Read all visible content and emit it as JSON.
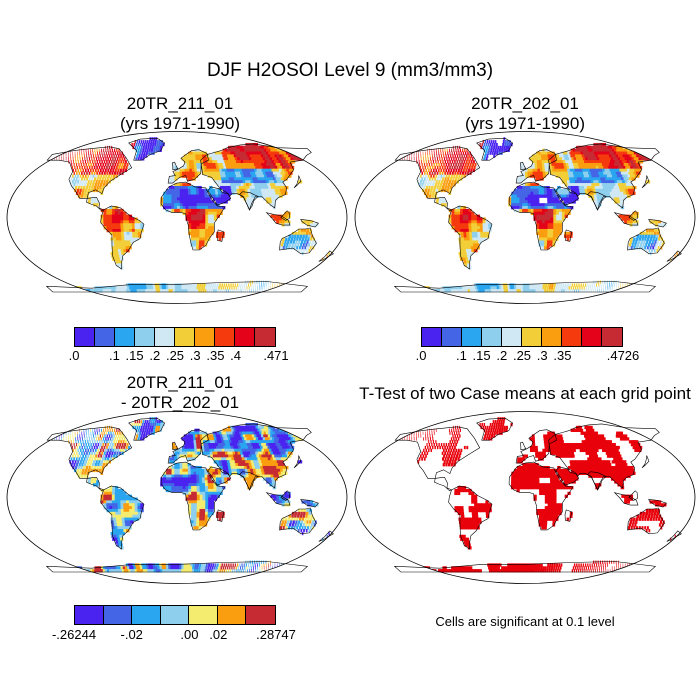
{
  "title": "DJF H2OSOI Level 9 (mm3/mm3)",
  "panels": {
    "top_left": {
      "title_line1": "20TR_211_01",
      "title_line2": "(yrs 1971-1990)",
      "colorbar": {
        "colors": [
          "#4b23f0",
          "#4466e6",
          "#2aa5ef",
          "#8fcfee",
          "#cfe8f4",
          "#f2cf38",
          "#fa9e10",
          "#f53a0e",
          "#e4021a",
          "#c62b33"
        ],
        "tick_labels": [
          ".0",
          ".1",
          ".15",
          ".2",
          ".25",
          ".3",
          ".35",
          ".4",
          ".471"
        ]
      }
    },
    "top_right": {
      "title_line1": "20TR_202_01",
      "title_line2": "(yrs 1971-1990)",
      "colorbar": {
        "colors": [
          "#4b23f0",
          "#4466e6",
          "#2aa5ef",
          "#8fcfee",
          "#cfe8f4",
          "#f2cf38",
          "#fa9e10",
          "#f53a0e",
          "#e4021a",
          "#c62b33"
        ],
        "tick_labels": [
          ".0",
          ".1",
          ".15",
          ".2",
          ".25",
          ".3",
          ".35",
          ".4726"
        ]
      }
    },
    "bottom_left": {
      "title_line1": "20TR_211_01",
      "title_line2": "- 20TR_202_01",
      "colorbar": {
        "colors": [
          "#4b23f0",
          "#4466e6",
          "#2aa5ef",
          "#8fcfee",
          "#f4ec6e",
          "#fa9e10",
          "#c62b33"
        ],
        "tick_labels": [
          "-.26244",
          "-.02",
          ".00",
          ".02",
          ".28747"
        ]
      }
    },
    "bottom_right": {
      "title": "T-Test of two Case means at each grid point",
      "note": "Cells are significant at 0.1 level",
      "significant_color": "#e8000b"
    }
  }
}
